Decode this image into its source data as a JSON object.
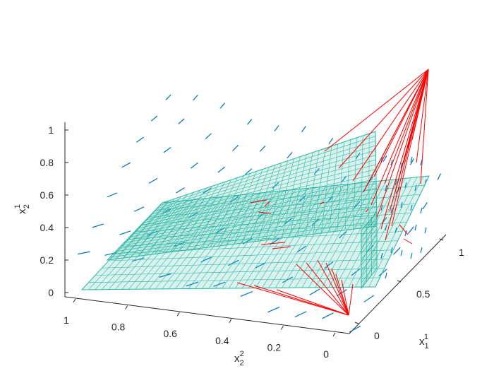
{
  "chart_data": {
    "type": "3d-surface-quiver",
    "axes": {
      "z": {
        "label_main": "x",
        "label_sub": "2",
        "label_sup": "1",
        "ticks": [
          "0",
          "0.2",
          "0.4",
          "0.6",
          "0.8",
          "1"
        ],
        "range": [
          0,
          1
        ]
      },
      "x": {
        "label_main": "x",
        "label_sub": "2",
        "label_sup": "2",
        "ticks": [
          "1",
          "0.8",
          "0.6",
          "0.4",
          "0.2",
          "0"
        ],
        "range": [
          0,
          1
        ]
      },
      "y": {
        "label_main": "x",
        "label_sub": "1",
        "label_sup": "1",
        "ticks": [
          "0",
          "0.5",
          "1"
        ],
        "range": [
          0,
          1
        ]
      }
    },
    "series": [
      {
        "kind": "surface",
        "color": "#2eb8a3"
      },
      {
        "kind": "surface",
        "color": "#2eb8a3"
      },
      {
        "kind": "quiver",
        "color": "#0072bd"
      },
      {
        "kind": "trajectories",
        "color": "#ff0000"
      }
    ],
    "grid": false,
    "legend": "none"
  }
}
